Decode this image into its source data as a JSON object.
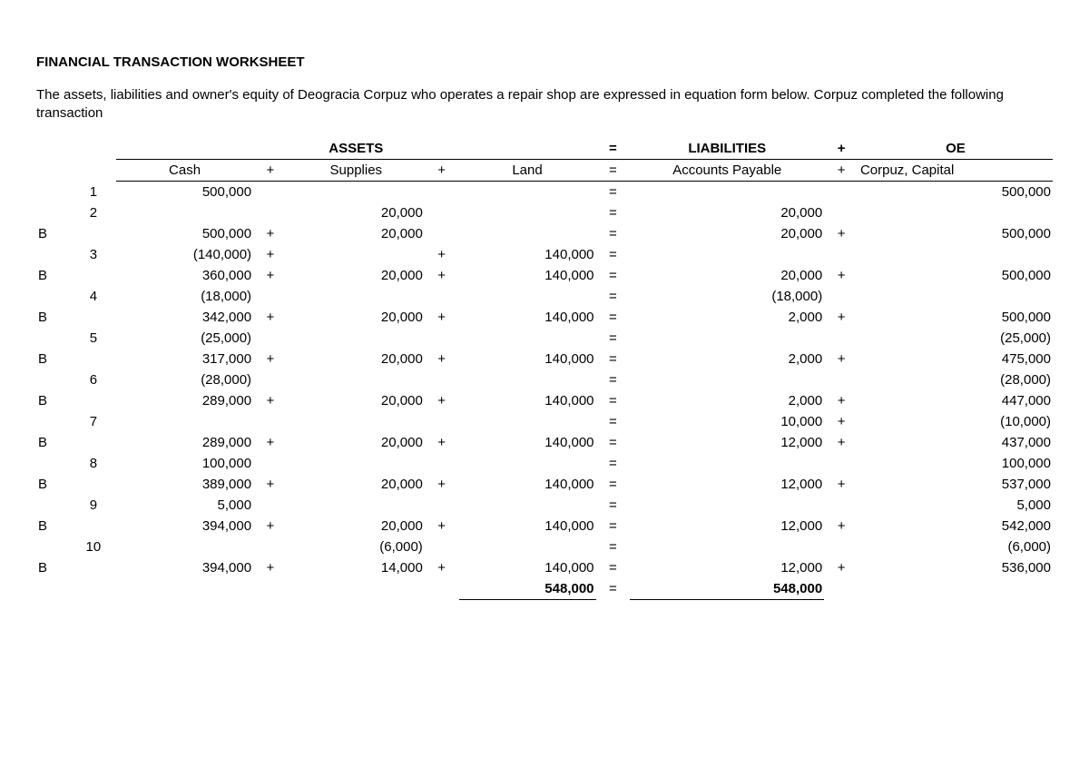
{
  "title": "FINANCIAL TRANSACTION WORKSHEET",
  "intro": "The assets, liabilities and owner's equity of Deogracia Corpuz who operates a repair shop are expressed in equation form below. Corpuz completed the following transaction",
  "groups": {
    "assets": "ASSETS",
    "liab": "LIABILITIES",
    "oe": "OE"
  },
  "cols": {
    "cash": "Cash",
    "supplies": "Supplies",
    "land": "Land",
    "ap": "Accounts Payable",
    "cap": "Corpuz, Capital"
  },
  "signs": {
    "plus": "+",
    "eq": "="
  },
  "rows": [
    {
      "label": "",
      "num": "1",
      "cash": "500,000",
      "s1": "",
      "supp": "",
      "s2": "",
      "land": "",
      "eq": "=",
      "ap": "",
      "s3": "",
      "cap": "500,000"
    },
    {
      "label": "",
      "num": "2",
      "cash": "",
      "s1": "",
      "supp": "20,000",
      "s2": "",
      "land": "",
      "eq": "=",
      "ap": "20,000",
      "s3": "",
      "cap": ""
    },
    {
      "label": "B",
      "num": "",
      "cash": "500,000",
      "s1": "+",
      "supp": "20,000",
      "s2": "",
      "land": "",
      "eq": "=",
      "ap": "20,000",
      "s3": "+",
      "cap": "500,000"
    },
    {
      "label": "",
      "num": "3",
      "cash": "(140,000)",
      "s1": "+",
      "supp": "",
      "s2": "+",
      "land": "140,000",
      "eq": "=",
      "ap": "",
      "s3": "",
      "cap": ""
    },
    {
      "label": "B",
      "num": "",
      "cash": "360,000",
      "s1": "+",
      "supp": "20,000",
      "s2": "+",
      "land": "140,000",
      "eq": "=",
      "ap": "20,000",
      "s3": "+",
      "cap": "500,000"
    },
    {
      "label": "",
      "num": "4",
      "cash": "(18,000)",
      "s1": "",
      "supp": "",
      "s2": "",
      "land": "",
      "eq": "=",
      "ap": "(18,000)",
      "s3": "",
      "cap": ""
    },
    {
      "label": "B",
      "num": "",
      "cash": "342,000",
      "s1": "+",
      "supp": "20,000",
      "s2": "+",
      "land": "140,000",
      "eq": "=",
      "ap": "2,000",
      "s3": "+",
      "cap": "500,000"
    },
    {
      "label": "",
      "num": "5",
      "cash": "(25,000)",
      "s1": "",
      "supp": "",
      "s2": "",
      "land": "",
      "eq": "=",
      "ap": "",
      "s3": "",
      "cap": "(25,000)"
    },
    {
      "label": "B",
      "num": "",
      "cash": "317,000",
      "s1": "+",
      "supp": "20,000",
      "s2": "+",
      "land": "140,000",
      "eq": "=",
      "ap": "2,000",
      "s3": "+",
      "cap": "475,000"
    },
    {
      "label": "",
      "num": "6",
      "cash": "(28,000)",
      "s1": "",
      "supp": "",
      "s2": "",
      "land": "",
      "eq": "=",
      "ap": "",
      "s3": "",
      "cap": "(28,000)"
    },
    {
      "label": "B",
      "num": "",
      "cash": "289,000",
      "s1": "+",
      "supp": "20,000",
      "s2": "+",
      "land": "140,000",
      "eq": "=",
      "ap": "2,000",
      "s3": "+",
      "cap": "447,000"
    },
    {
      "label": "",
      "num": "7",
      "cash": "",
      "s1": "",
      "supp": "",
      "s2": "",
      "land": "",
      "eq": "=",
      "ap": "10,000",
      "s3": "+",
      "cap": "(10,000)"
    },
    {
      "label": "B",
      "num": "",
      "cash": "289,000",
      "s1": "+",
      "supp": "20,000",
      "s2": "+",
      "land": "140,000",
      "eq": "=",
      "ap": "12,000",
      "s3": "+",
      "cap": "437,000"
    },
    {
      "label": "",
      "num": "8",
      "cash": "100,000",
      "s1": "",
      "supp": "",
      "s2": "",
      "land": "",
      "eq": "=",
      "ap": "",
      "s3": "",
      "cap": "100,000"
    },
    {
      "label": "B",
      "num": "",
      "cash": "389,000",
      "s1": "+",
      "supp": "20,000",
      "s2": "+",
      "land": "140,000",
      "eq": "=",
      "ap": "12,000",
      "s3": "+",
      "cap": "537,000"
    },
    {
      "label": "",
      "num": "9",
      "cash": "5,000",
      "s1": "",
      "supp": "",
      "s2": "",
      "land": "",
      "eq": "=",
      "ap": "",
      "s3": "",
      "cap": "5,000"
    },
    {
      "label": "B",
      "num": "",
      "cash": "394,000",
      "s1": "+",
      "supp": "20,000",
      "s2": "+",
      "land": "140,000",
      "eq": "=",
      "ap": "12,000",
      "s3": "+",
      "cap": "542,000"
    },
    {
      "label": "",
      "num": "10",
      "cash": "",
      "s1": "",
      "supp": "(6,000)",
      "s2": "",
      "land": "",
      "eq": "=",
      "ap": "",
      "s3": "",
      "cap": "(6,000)"
    },
    {
      "label": "B",
      "num": "",
      "cash": "394,000",
      "s1": "+",
      "supp": "14,000",
      "s2": "+",
      "land": "140,000",
      "eq": "=",
      "ap": "12,000",
      "s3": "+",
      "cap": "536,000"
    }
  ],
  "totals": {
    "left": "548,000",
    "eq": "=",
    "right": "548,000"
  }
}
